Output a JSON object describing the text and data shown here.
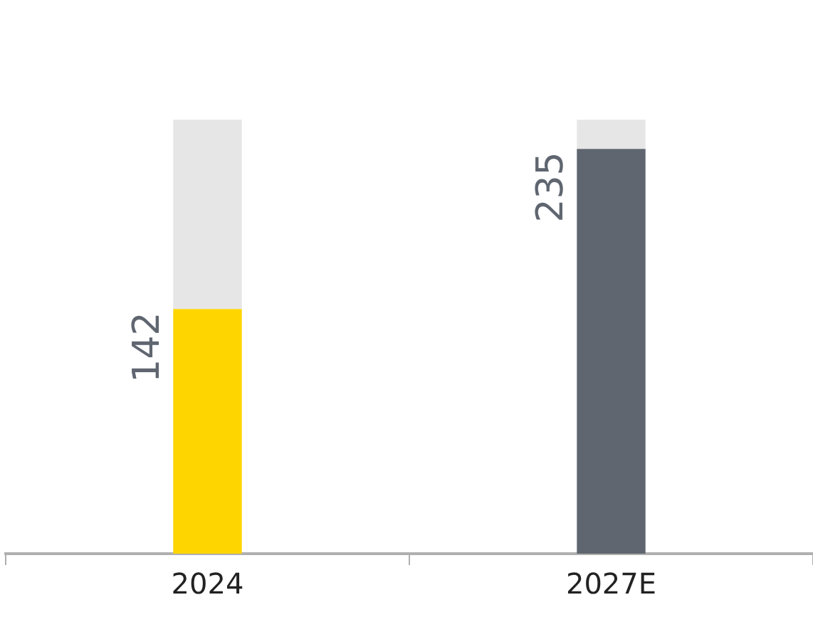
{
  "chart_data": {
    "type": "bar",
    "stacked": true,
    "categories": [
      "2024",
      "2027E"
    ],
    "series": [
      {
        "colors": [
          "#ffd500",
          "#5f6670"
        ],
        "values": [
          142,
          235
        ],
        "value_labels": [
          "142",
          "235"
        ]
      },
      {
        "color": "#e6e6e6",
        "values": [
          110,
          17
        ]
      }
    ],
    "grid": false,
    "legend": false,
    "tick_labels": "x"
  }
}
